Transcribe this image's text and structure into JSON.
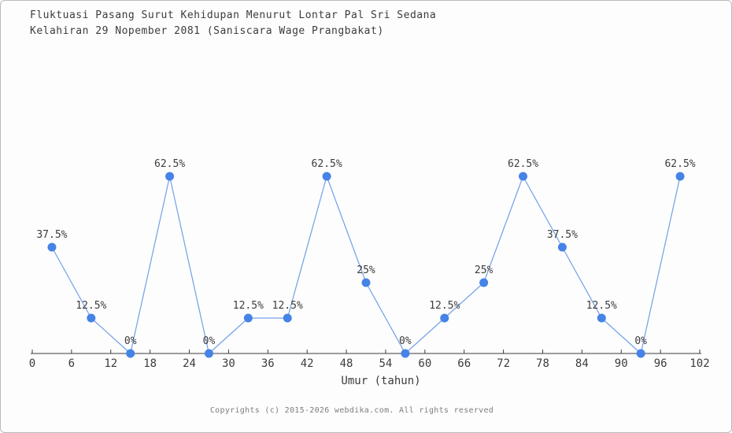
{
  "header": {
    "title_line1": "Fluktuasi Pasang Surut Kehidupan Menurut Lontar Pal Sri Sedana",
    "title_line2": "Kelahiran 29 Nopember 2081 (Saniscara Wage Prangbakat)"
  },
  "footer": {
    "text": "Copyrights (c) 2015-2026 webdika.com. All rights reserved"
  },
  "chart_data": {
    "type": "line",
    "title": "Fluktuasi Pasang Surut Kehidupan Menurut Lontar Pal Sri Sedana Kelahiran 29 Nopember 2081 (Saniscara Wage Prangbakat)",
    "xlabel": "Umur (tahun)",
    "ylabel": "",
    "x": [
      3,
      9,
      15,
      21,
      27,
      33,
      39,
      45,
      51,
      57,
      63,
      69,
      75,
      81,
      87,
      93,
      99
    ],
    "values": [
      37.5,
      12.5,
      0,
      62.5,
      0,
      12.5,
      12.5,
      62.5,
      25,
      0,
      12.5,
      25,
      62.5,
      37.5,
      12.5,
      0,
      62.5
    ],
    "point_labels": [
      "37.5%",
      "12.5%",
      "0%",
      "62.5%",
      "0%",
      "12.5%",
      "12.5%",
      "62.5%",
      "25%",
      "0%",
      "12.5%",
      "25%",
      "62.5%",
      "37.5%",
      "12.5%",
      "0%",
      "62.5%"
    ],
    "xticks": [
      0,
      6,
      12,
      18,
      24,
      30,
      36,
      42,
      48,
      54,
      60,
      66,
      72,
      78,
      84,
      90,
      96,
      102
    ],
    "xlim": [
      0,
      102
    ],
    "ylim": [
      0,
      100
    ],
    "grid": false,
    "legend": "none",
    "marker": "circle",
    "colors": {
      "line": "#74a3e8",
      "marker": "#4583e6",
      "axis": "#3c3c3c",
      "label": "#3c3c3c",
      "footer_text": "#7d7d7d",
      "border": "#b9b9b9",
      "background": "#fdfdfd"
    }
  }
}
